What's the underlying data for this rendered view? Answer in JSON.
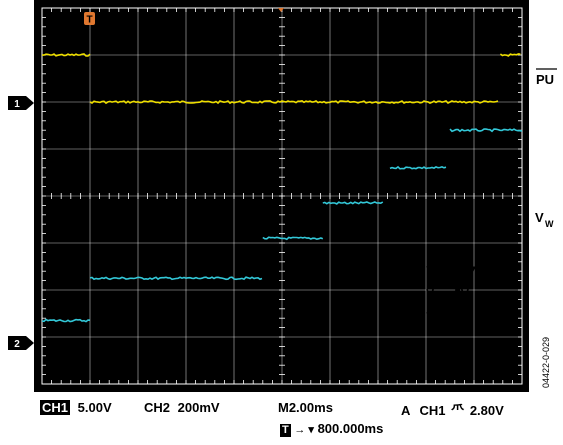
{
  "chart_data": {
    "type": "line",
    "x_range_ms": [
      -10,
      10
    ],
    "x_divisions": 10,
    "y_divisions": 8,
    "grid": true,
    "series": [
      {
        "channel": "CH1",
        "color": "#f0e000",
        "marker_label": "1",
        "name": "PU",
        "volts_per_div": 5.0,
        "ground_div_from_top": 2.0,
        "segments": [
          {
            "x0": -10.0,
            "x1": -8.0,
            "volts": 5
          },
          {
            "x0": -8.0,
            "x1": 9.0,
            "volts": 0
          },
          {
            "x0": 9.1,
            "x1": 10.0,
            "volts": 5
          }
        ]
      },
      {
        "channel": "CH2",
        "color": "#33c8d8",
        "marker_label": "2",
        "name": "W",
        "volts_per_div": 0.2,
        "ground_div_from_top": 6.75,
        "segments": [
          {
            "x0": -10.0,
            "x1": -8.0,
            "volts": 0.02
          },
          {
            "x0": -8.0,
            "x1": -0.8,
            "volts": 0.2
          },
          {
            "x0": -0.8,
            "x1": 1.7,
            "volts": 0.37
          },
          {
            "x0": 1.7,
            "x1": 4.2,
            "volts": 0.52
          },
          {
            "x0": 4.5,
            "x1": 6.9,
            "volts": 0.67
          },
          {
            "x0": 7.0,
            "x1": 10.0,
            "volts": 0.83
          }
        ]
      }
    ],
    "annotations": {
      "vdd": "V_DD = 5V",
      "va": "V_A = 5V",
      "vb": "V_B = 0V"
    },
    "trigger_marker_label": "T"
  },
  "right_labels": {
    "pu": "PU",
    "vw_main": "V",
    "vw_sub": "W"
  },
  "annotation_text": {
    "vdd_main": "V",
    "vdd_sub": "DD",
    "vdd_rest": " = 5V",
    "va_main": "V",
    "va_sub": "A",
    "va_rest": " = 5V",
    "vb_main": "V",
    "vb_sub": "B",
    "vb_rest": " = 0V"
  },
  "figure_id": "04422-0-029",
  "status": {
    "ch1_label": "CH1",
    "ch1_scale": "5.00V",
    "ch2_label": "CH2",
    "ch2_scale": "200mV",
    "timebase": "M2.00ms",
    "trigger_mode": "A",
    "trigger_channel": "CH1",
    "trigger_slope_symbol": "⺥",
    "trigger_level": "2.80V",
    "trigger_box": "T",
    "trigger_arrow": "→ ▾",
    "trigger_position": "800.000ms"
  }
}
